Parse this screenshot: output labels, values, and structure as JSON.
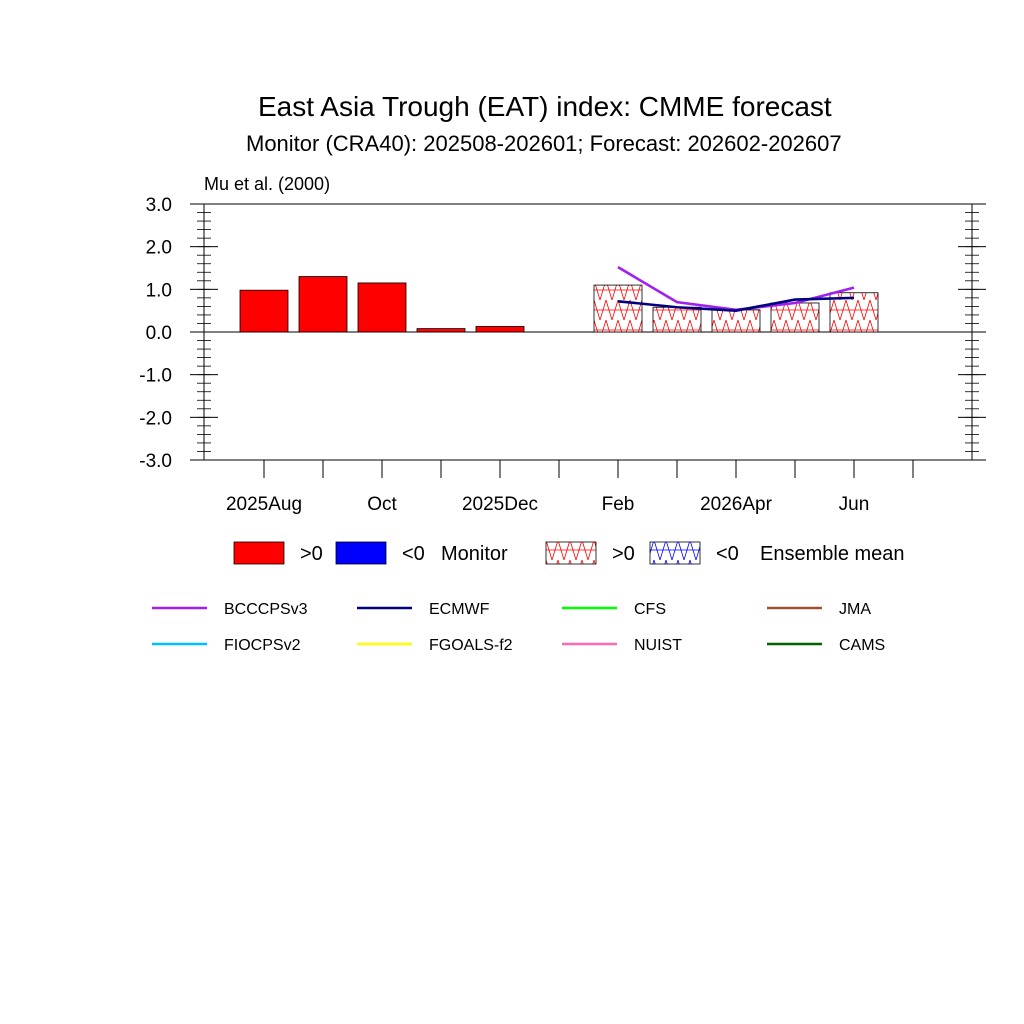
{
  "chart_data": {
    "type": "bar",
    "title": "East Asia Trough (EAT) index: CMME forecast",
    "subtitle": "Monitor (CRA40): 202508-202601; Forecast: 202602-202607",
    "reference": "Mu et al. (2000)",
    "ylim": [
      -3.0,
      3.0
    ],
    "yticks": [
      "3.0",
      "2.0",
      "1.0",
      "0.0",
      "-1.0",
      "-2.0",
      "-3.0"
    ],
    "xlabels": [
      "2025Aug",
      "Oct",
      "2025Dec",
      "Feb",
      "2026Apr",
      "Jun"
    ],
    "monitor": {
      "categories": [
        "2025Aug",
        "2025Sep",
        "2025Oct",
        "2025Nov",
        "2025Dec",
        "2026Jan"
      ],
      "values": [
        0.98,
        1.3,
        1.15,
        0.08,
        0.13,
        null
      ],
      "color_pos": "#ff0000",
      "color_neg": "#0000ff"
    },
    "forecast": {
      "categories": [
        "2026Feb",
        "2026Mar",
        "2026Apr",
        "2026May",
        "2026Jun"
      ],
      "ensemble_mean": [
        1.1,
        0.58,
        0.52,
        0.68,
        0.92
      ],
      "series": [
        {
          "name": "BCCCPSv3",
          "values": [
            1.52,
            0.7,
            0.52,
            0.68,
            1.04
          ]
        },
        {
          "name": "ECMWF",
          "values": [
            0.72,
            0.58,
            0.5,
            0.76,
            0.8
          ]
        }
      ]
    },
    "legend": {
      "bar_items": [
        {
          "id": "monitor-pos",
          "label": ">0",
          "color": "#ff0000"
        },
        {
          "id": "monitor-neg",
          "label": "<0",
          "color": "#0000ff"
        },
        {
          "id": "ens-pos",
          "label": ">0",
          "color": "#ff0000"
        },
        {
          "id": "ens-neg",
          "label": "<0",
          "color": "#0000ff"
        }
      ],
      "monitor_label": "Monitor",
      "ensemble_label": "Ensemble mean",
      "models": [
        {
          "name": "BCCCPSv3",
          "color": "#a020f0"
        },
        {
          "name": "ECMWF",
          "color": "#000080"
        },
        {
          "name": "CFS",
          "color": "#00ff00"
        },
        {
          "name": "JMA",
          "color": "#a0522d"
        },
        {
          "name": "FIOCPSv2",
          "color": "#00bfff"
        },
        {
          "name": "FGOALS-f2",
          "color": "#ffff00"
        },
        {
          "name": "NUIST",
          "color": "#ff69b4"
        },
        {
          "name": "CAMS",
          "color": "#006400"
        }
      ]
    }
  }
}
